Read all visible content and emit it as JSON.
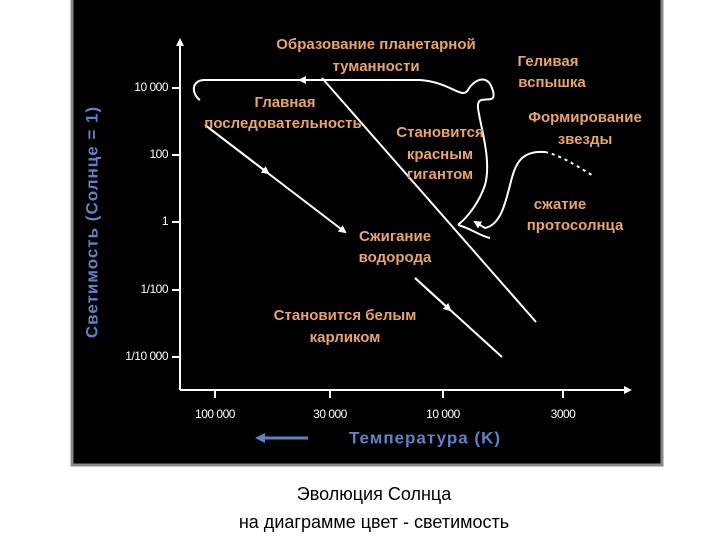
{
  "y_axis": {
    "title": "Светимость (Солнце = 1)",
    "ticks": [
      "10 000",
      "100",
      "1",
      "1/100",
      "1/10 000"
    ]
  },
  "x_axis": {
    "title": "Температура (K)",
    "ticks": [
      "100 000",
      "30 000",
      "10 000",
      "3000"
    ]
  },
  "annotations": [
    {
      "lines": [
        "Образование планетарной",
        "туманности"
      ]
    },
    {
      "lines": [
        "Геливая",
        "вспышка"
      ]
    },
    {
      "lines": [
        "Главная",
        "последовательность"
      ]
    },
    {
      "lines": [
        "Становится",
        "красным",
        "гигантом"
      ]
    },
    {
      "lines": [
        "Формирование",
        "звезды"
      ]
    },
    {
      "lines": [
        "сжатие",
        "протосолнца"
      ]
    },
    {
      "lines": [
        "Сжигание",
        "водорода"
      ]
    },
    {
      "lines": [
        "Становится белым",
        "карликом"
      ]
    }
  ],
  "caption": [
    "Эволюция Солнца",
    "на диаграмме цвет - светимость"
  ]
}
